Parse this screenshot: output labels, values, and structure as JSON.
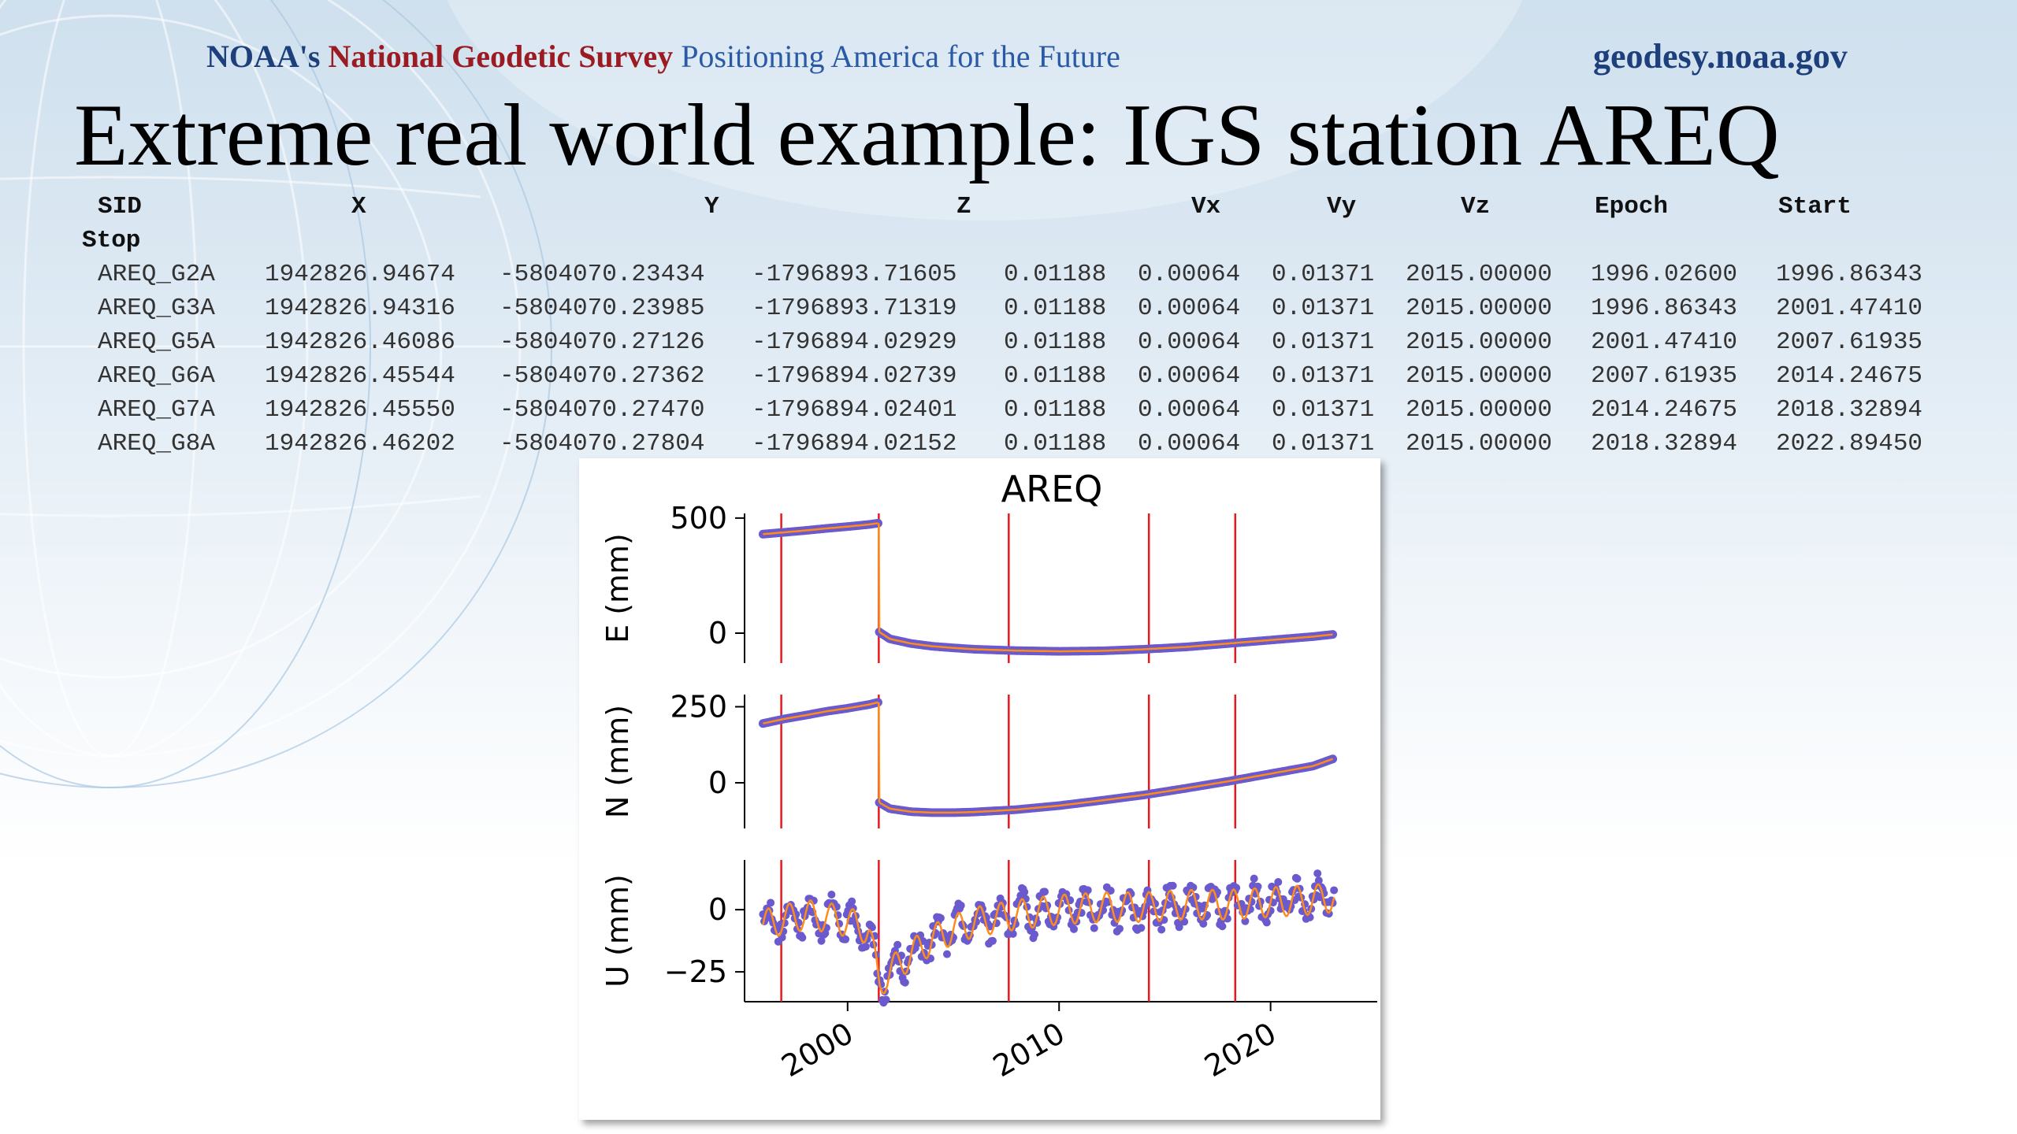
{
  "header": {
    "org_prefix": "NOAA's",
    "org_name": "National Geodetic Survey",
    "tagline": "Positioning America for the Future",
    "website": "geodesy.noaa.gov"
  },
  "slide": {
    "title": "Extreme real world example: IGS station AREQ"
  },
  "table": {
    "columns": [
      "SID",
      "X",
      "Y",
      "Z",
      "Vx",
      "Vy",
      "Vz",
      "Epoch",
      "Start",
      "Stop"
    ],
    "rows": [
      [
        "AREQ_G2A",
        "1942826.94674",
        "-5804070.23434",
        "-1796893.71605",
        "0.01188",
        "0.00064",
        "0.01371",
        "2015.00000",
        "1996.02600",
        "1996.86343"
      ],
      [
        "AREQ_G3A",
        "1942826.94316",
        "-5804070.23985",
        "-1796893.71319",
        "0.01188",
        "0.00064",
        "0.01371",
        "2015.00000",
        "1996.86343",
        "2001.47410"
      ],
      [
        "AREQ_G5A",
        "1942826.46086",
        "-5804070.27126",
        "-1796894.02929",
        "0.01188",
        "0.00064",
        "0.01371",
        "2015.00000",
        "2001.47410",
        "2007.61935"
      ],
      [
        "AREQ_G6A",
        "1942826.45544",
        "-5804070.27362",
        "-1796894.02739",
        "0.01188",
        "0.00064",
        "0.01371",
        "2015.00000",
        "2007.61935",
        "2014.24675"
      ],
      [
        "AREQ_G7A",
        "1942826.45550",
        "-5804070.27470",
        "-1796894.02401",
        "0.01188",
        "0.00064",
        "0.01371",
        "2015.00000",
        "2014.24675",
        "2018.32894"
      ],
      [
        "AREQ_G8A",
        "1942826.46202",
        "-5804070.27804",
        "-1796894.02152",
        "0.01188",
        "0.00064",
        "0.01371",
        "2015.00000",
        "2018.32894",
        "2022.89450"
      ]
    ]
  },
  "chart_data": {
    "type": "scatter",
    "title": "AREQ",
    "xlim": [
      1995.5,
      2024.0
    ],
    "xticks": [
      2000,
      2010,
      2020
    ],
    "xtick_labels": [
      "2000",
      "2010",
      "2020"
    ],
    "vertical_lines": [
      1996.86343,
      2001.4741,
      2007.61935,
      2014.24675,
      2018.32894
    ],
    "colors": {
      "points": "#6a5acd",
      "model": "#ff8c1a",
      "vlines": "#e8191c"
    },
    "panels": [
      {
        "ylabel": "E (mm)",
        "ylim": [
          -130,
          520
        ],
        "yticks": [
          0,
          500
        ],
        "ytick_labels": [
          "0",
          "500"
        ],
        "series": [
          {
            "x": [
              1996.0,
              1997.0,
              1998.0,
              1999.0,
              2000.0,
              2001.0,
              2001.47
            ],
            "y": [
              430,
              438,
              446,
              455,
              463,
              472,
              478
            ]
          },
          {
            "x": [
              2001.5,
              2002.0,
              2003.0,
              2004.0,
              2005.0,
              2006.0,
              2008.0,
              2010.0,
              2012.0,
              2014.0,
              2016.0,
              2018.0,
              2020.0,
              2022.0,
              2023.0
            ],
            "y": [
              5,
              -25,
              -45,
              -57,
              -64,
              -70,
              -76,
              -79,
              -77,
              -70,
              -60,
              -45,
              -30,
              -15,
              -5
            ]
          }
        ]
      },
      {
        "ylabel": "N (mm)",
        "ylim": [
          -150,
          290
        ],
        "yticks": [
          0,
          250
        ],
        "ytick_labels": [
          "0",
          "250"
        ],
        "series": [
          {
            "x": [
              1996.0,
              1997.0,
              1998.0,
              1999.0,
              2000.0,
              2001.0,
              2001.47
            ],
            "y": [
              195,
              210,
              222,
              235,
              245,
              257,
              265
            ]
          },
          {
            "x": [
              2001.5,
              2002.0,
              2003.0,
              2004.0,
              2005.0,
              2006.0,
              2008.0,
              2010.0,
              2012.0,
              2014.0,
              2016.0,
              2018.0,
              2020.0,
              2022.0,
              2023.0
            ],
            "y": [
              -65,
              -85,
              -95,
              -98,
              -98,
              -96,
              -88,
              -75,
              -58,
              -40,
              -18,
              5,
              30,
              55,
              80
            ]
          }
        ]
      },
      {
        "ylabel": "U (mm)",
        "ylim": [
          -37,
          20
        ],
        "yticks": [
          -25,
          0
        ],
        "ytick_labels": [
          "−25",
          "0"
        ],
        "series": [
          {
            "x": [
              1996.0,
              1997.0,
              1998.0,
              1999.0,
              2000.0,
              2001.0,
              2001.5,
              2002.0,
              2003.0,
              2004.0,
              2005.0,
              2006.0,
              2008.0,
              2010.0,
              2012.0,
              2014.0,
              2016.0,
              2018.0,
              2020.0,
              2022.0,
              2023.0
            ],
            "y": [
              -6,
              -4,
              -2,
              -3,
              -5,
              -8,
              -30,
              -25,
              -18,
              -12,
              -8,
              -5,
              -2,
              0,
              1,
              1,
              2,
              2,
              3,
              4,
              5
            ]
          }
        ]
      }
    ]
  }
}
